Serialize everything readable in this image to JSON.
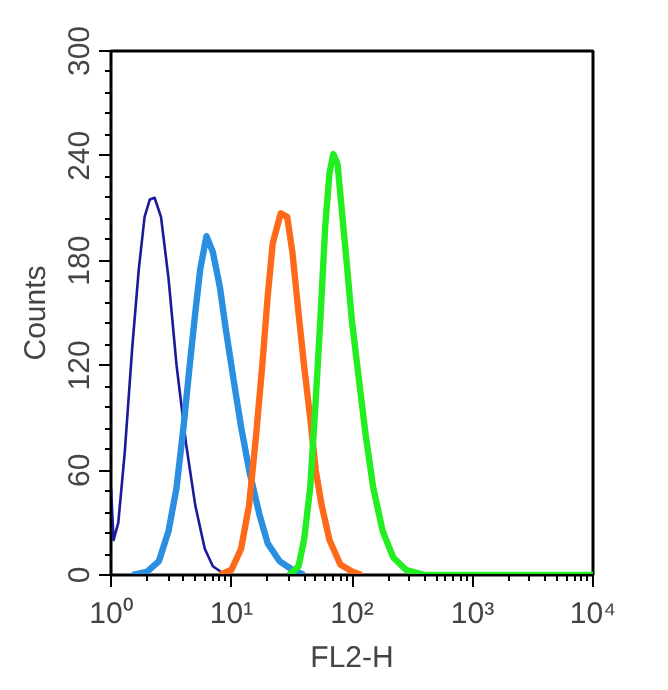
{
  "chart_data": {
    "type": "line",
    "xlabel": "FL2-H",
    "ylabel": "Counts",
    "log": "x",
    "grid": false,
    "marker": "none",
    "line_style": "solid",
    "xlim": [
      1,
      10000
    ],
    "xticks": [
      {
        "value": 1,
        "label": "10⁰"
      },
      {
        "value": 10,
        "label": "10¹"
      },
      {
        "value": 100,
        "label": "10²"
      },
      {
        "value": 1000,
        "label": "10³"
      },
      {
        "value": 10000,
        "label": "10⁴"
      }
    ],
    "ylim": [
      0,
      300
    ],
    "yticks": [
      0,
      60,
      120,
      180,
      240,
      300
    ],
    "series": [
      {
        "color": "#1a1a9a",
        "x": [
          1,
          1.05,
          1.15,
          1.3,
          1.5,
          1.7,
          1.9,
          2.1,
          2.3,
          2.6,
          3.0,
          3.5,
          4.2,
          5,
          6,
          7,
          8.5,
          10
        ],
        "values": [
          50,
          20,
          30,
          70,
          130,
          175,
          205,
          215,
          216,
          205,
          170,
          120,
          75,
          40,
          15,
          5,
          1,
          0
        ]
      },
      {
        "color": "#2a8fe0",
        "x": [
          1.5,
          2,
          2.5,
          3,
          3.5,
          4,
          4.5,
          5,
          5.5,
          6.2,
          7,
          8,
          9,
          10.5,
          12,
          14,
          17,
          20,
          25,
          32,
          40
        ],
        "values": [
          0,
          2,
          8,
          25,
          50,
          85,
          120,
          150,
          175,
          194,
          185,
          165,
          140,
          110,
          85,
          60,
          35,
          18,
          8,
          3,
          0
        ]
      },
      {
        "color": "#ff6a1a",
        "x": [
          8,
          10,
          12,
          14,
          16,
          18,
          20,
          22,
          25.6,
          29,
          32,
          36,
          40,
          45,
          50,
          56,
          65,
          80,
          100,
          120
        ],
        "values": [
          0,
          3,
          15,
          40,
          80,
          120,
          160,
          190,
          207,
          205,
          185,
          150,
          120,
          90,
          60,
          40,
          20,
          6,
          2,
          0
        ]
      },
      {
        "color": "#22ee22",
        "x": [
          30,
          36,
          40,
          45,
          50,
          55,
          60,
          65,
          70,
          76,
          82,
          90,
          100,
          115,
          130,
          150,
          180,
          220,
          280,
          400,
          10000
        ],
        "values": [
          0,
          5,
          20,
          50,
          100,
          150,
          200,
          230,
          241,
          235,
          210,
          180,
          145,
          110,
          80,
          50,
          25,
          10,
          3,
          0,
          0
        ]
      }
    ]
  }
}
